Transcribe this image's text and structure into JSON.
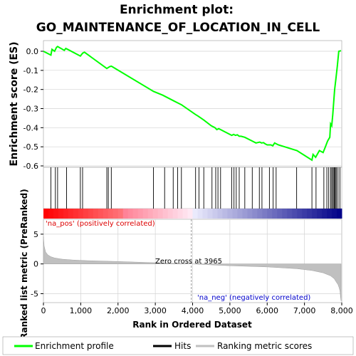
{
  "chart_data": {
    "type": "line",
    "title_line1": "Enrichment plot:",
    "title_line2": "GO_MAINTENANCE_OF_LOCATION_IN_CELL",
    "top_panel": {
      "ylabel": "Enrichment score (ES)",
      "ylim": [
        -0.6,
        0.02
      ],
      "yticks": [
        "0.0",
        "-0.1",
        "-0.2",
        "-0.3",
        "-0.4",
        "-0.5",
        "-0.6"
      ],
      "ytick_values": [
        0.0,
        -0.1,
        -0.2,
        -0.3,
        -0.4,
        -0.5,
        -0.6
      ],
      "line_color": "#00ff00",
      "series": [
        {
          "x": [
            0,
            200,
            230,
            300,
            350,
            380,
            560,
            600,
            650,
            990,
            1050,
            1100,
            1700,
            1740,
            1780,
            1820,
            1840,
            2950,
            3200,
            3500,
            3600,
            3700,
            4070,
            4150,
            4300,
            4500,
            4600,
            4650,
            4700,
            4750,
            4800,
            5050,
            5100,
            5150,
            5200,
            5250,
            5300,
            5400,
            5600,
            5700,
            5800,
            5850,
            5900,
            5950,
            6000,
            6100,
            6150,
            6200,
            6250,
            6300,
            6800,
            7200,
            7230,
            7300,
            7400,
            7500,
            7560,
            7620,
            7680,
            7700,
            7730,
            7760,
            7790,
            7810,
            7840,
            7880,
            7920,
            7980
          ],
          "y": [
            0.0,
            -0.02,
            0.01,
            0.0,
            0.02,
            0.025,
            0.005,
            0.015,
            0.01,
            -0.025,
            -0.01,
            -0.005,
            -0.09,
            -0.085,
            -0.08,
            -0.078,
            -0.08,
            -0.21,
            -0.23,
            -0.26,
            -0.27,
            -0.28,
            -0.33,
            -0.34,
            -0.36,
            -0.39,
            -0.4,
            -0.41,
            -0.405,
            -0.41,
            -0.415,
            -0.44,
            -0.435,
            -0.44,
            -0.437,
            -0.445,
            -0.445,
            -0.45,
            -0.47,
            -0.48,
            -0.475,
            -0.48,
            -0.478,
            -0.485,
            -0.49,
            -0.49,
            -0.495,
            -0.48,
            -0.485,
            -0.49,
            -0.52,
            -0.57,
            -0.54,
            -0.555,
            -0.52,
            -0.53,
            -0.5,
            -0.47,
            -0.45,
            -0.38,
            -0.39,
            -0.33,
            -0.25,
            -0.2,
            -0.15,
            -0.08,
            0.0,
            0.003
          ]
        }
      ]
    },
    "hits": {
      "positions": [
        200,
        320,
        380,
        620,
        990,
        1050,
        1700,
        1740,
        1820,
        2950,
        3250,
        3480,
        3600,
        3700,
        4080,
        4170,
        4300,
        4520,
        4620,
        4680,
        4750,
        5050,
        5110,
        5170,
        5250,
        5400,
        5600,
        5790,
        5860,
        6060,
        6160,
        6240,
        6790,
        7200,
        7310,
        7520,
        7600,
        7650,
        7700,
        7730,
        7760,
        7790,
        7810,
        7830,
        7860,
        7900,
        7950
      ]
    },
    "bottom_panel": {
      "ylabel": "Ranked list metric (PreRanked)",
      "xlabel": "Rank in Ordered Dataset",
      "xlim": [
        0,
        8000
      ],
      "ylim": [
        -6.5,
        7.5
      ],
      "xticks": [
        "0",
        "1,000",
        "2,000",
        "3,000",
        "4,000",
        "5,000",
        "6,000",
        "7,000",
        "8,000"
      ],
      "xtick_values": [
        0,
        1000,
        2000,
        3000,
        4000,
        5000,
        6000,
        7000,
        8000
      ],
      "yticks": [
        "5",
        "0",
        "-5"
      ],
      "ytick_values": [
        5,
        0,
        -5
      ],
      "metric_x": [
        0,
        20,
        60,
        120,
        200,
        300,
        500,
        800,
        1200,
        2000,
        3000,
        3965,
        5000,
        6000,
        6800,
        7200,
        7500,
        7700,
        7800,
        7850,
        7900,
        7930,
        7950,
        7960,
        7970,
        7980
      ],
      "metric_y": [
        4.6,
        3.0,
        2.0,
        1.5,
        1.2,
        1.0,
        0.8,
        0.65,
        0.55,
        0.4,
        0.2,
        0.0,
        -0.3,
        -0.5,
        -0.8,
        -1.1,
        -1.5,
        -2.0,
        -2.5,
        -3.0,
        -3.5,
        -4.0,
        -4.5,
        -5.0,
        -5.7,
        -6.2
      ],
      "zero_cross_label": "Zero cross at 3965",
      "zero_cross": 3965,
      "pos_label": "'na_pos' (positively correlated)",
      "neg_label": "'na_neg' (negatively correlated)"
    },
    "legend": [
      {
        "label": "Enrichment profile",
        "color": "#00ff00"
      },
      {
        "label": "Hits",
        "color": "#000000"
      },
      {
        "label": "Ranking metric scores",
        "color": "#c0c0c0"
      }
    ],
    "colors": {
      "pos_text": "#dd0000",
      "neg_text": "#0000cc",
      "grid": "#d3d3d3",
      "metric_fill": "#c0c0c0"
    }
  }
}
